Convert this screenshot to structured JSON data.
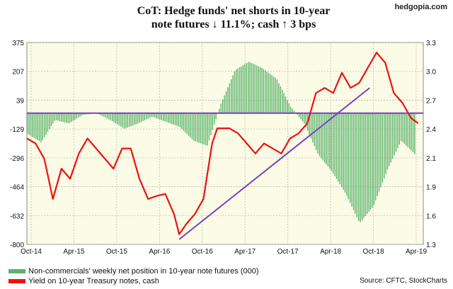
{
  "title_line1": "CoT: Hedge funds' net shorts in 10-year",
  "title_line2": "note futures ↓ 11.1%; cash ↑ 3 bps",
  "watermark": "hedgopia.com",
  "legend": [
    {
      "label": "Non-commercials' weekly net position in 10-year note futures (000)",
      "color": "#5cb36d"
    },
    {
      "label": "Yield on 10-year Treasury notes, cash",
      "color": "#ee1111"
    }
  ],
  "source": "Source: CFTC, StockCharts",
  "chart_data": {
    "type": "bar",
    "x_ticks": [
      "Oct-14",
      "Apr-15",
      "Oct-15",
      "Apr-16",
      "Oct-16",
      "Apr-17",
      "Oct-17",
      "Apr-18",
      "Oct-18",
      "Apr-19"
    ],
    "x_range": [
      "2014-10",
      "2019-04"
    ],
    "left_axis": {
      "ticks": [
        375,
        207,
        39,
        -129,
        -296,
        -464,
        -632,
        -800
      ],
      "range": [
        -800,
        375
      ]
    },
    "right_axis": {
      "ticks": [
        3.3,
        3.0,
        2.7,
        2.4,
        2.1,
        1.9,
        1.6,
        1.3
      ],
      "range": [
        1.3,
        3.3
      ]
    },
    "series": [
      {
        "name": "Non-commercials' weekly net position in 10-year note futures (000)",
        "type": "bar",
        "axis": "left",
        "color": "#5cb36d",
        "x": [
          2014.76,
          2014.92,
          2015.08,
          2015.24,
          2015.4,
          2015.56,
          2015.72,
          2015.88,
          2016.04,
          2016.2,
          2016.36,
          2016.52,
          2016.68,
          2016.84,
          2017.0,
          2017.16,
          2017.32,
          2017.48,
          2017.64,
          2017.8,
          2017.96,
          2018.12,
          2018.28,
          2018.44,
          2018.6,
          2018.76,
          2018.92,
          2019.08,
          2019.24
        ],
        "values": [
          -120,
          -170,
          -40,
          -60,
          -10,
          0,
          -40,
          -90,
          -60,
          -20,
          -50,
          -80,
          -160,
          -190,
          60,
          250,
          300,
          260,
          200,
          40,
          -60,
          -240,
          -340,
          -470,
          -640,
          -540,
          -330,
          -160,
          -240
        ]
      },
      {
        "name": "Yield on 10-year Treasury notes, cash",
        "type": "line",
        "axis": "right",
        "color": "#ee1111",
        "x": [
          2014.76,
          2014.86,
          2014.96,
          2015.06,
          2015.16,
          2015.26,
          2015.36,
          2015.46,
          2015.56,
          2015.66,
          2015.76,
          2015.86,
          2015.96,
          2016.06,
          2016.16,
          2016.26,
          2016.36,
          2016.46,
          2016.52,
          2016.6,
          2016.7,
          2016.8,
          2016.9,
          2016.96,
          2017.1,
          2017.2,
          2017.3,
          2017.4,
          2017.5,
          2017.6,
          2017.7,
          2017.8,
          2017.9,
          2018.0,
          2018.1,
          2018.2,
          2018.3,
          2018.4,
          2018.5,
          2018.6,
          2018.7,
          2018.8,
          2018.9,
          2019.0,
          2019.1,
          2019.2,
          2019.28
        ],
        "values": [
          2.35,
          2.3,
          2.15,
          1.75,
          2.05,
          1.95,
          2.2,
          2.35,
          2.25,
          2.15,
          2.05,
          2.25,
          2.25,
          1.95,
          1.75,
          1.78,
          1.8,
          1.6,
          1.4,
          1.5,
          1.6,
          1.75,
          2.3,
          2.45,
          2.45,
          2.4,
          2.3,
          2.2,
          2.3,
          2.25,
          2.2,
          2.35,
          2.4,
          2.5,
          2.8,
          2.85,
          2.8,
          3.0,
          2.85,
          2.9,
          3.05,
          3.2,
          3.1,
          2.8,
          2.7,
          2.55,
          2.5
        ]
      },
      {
        "name": "",
        "type": "trendline",
        "axis": "right",
        "color": "#7b3fc4",
        "x": [
          2016.52,
          2018.72
        ],
        "values": [
          1.35,
          2.85
        ]
      },
      {
        "name": "",
        "type": "hline",
        "axis": "right",
        "color": "#7b3fc4",
        "x": [
          2014.76,
          2019.34
        ],
        "values": [
          2.6,
          2.6
        ]
      }
    ],
    "grid": true
  }
}
